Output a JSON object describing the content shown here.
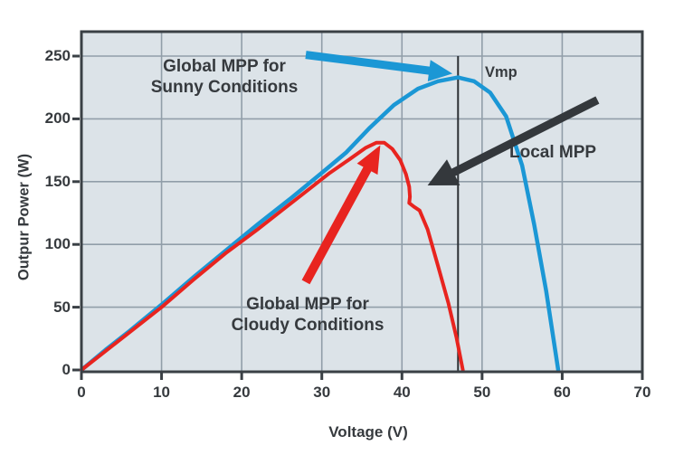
{
  "labels": {
    "sunny_line1": "Global MPP for",
    "sunny_line2": "Sunny Conditions",
    "cloudy_line1": "Global MPP for",
    "cloudy_line2": "Cloudy Conditions",
    "local_mpp": "Local MPP",
    "vmp": "Vmp"
  },
  "colors": {
    "plot_bg": "#dce3e8",
    "grid": "#919ea9",
    "frame": "#3a4045",
    "sunny": "#1b97d5",
    "cloudy": "#e8241f",
    "arrow_black": "#34383c",
    "vmp_line": "#2b2f33",
    "text": "#363a3e"
  },
  "chart_data": {
    "type": "line",
    "title": "",
    "xlabel": "Voltage (V)",
    "ylabel": "Outpur Power (W)",
    "xlim": [
      0,
      70
    ],
    "ylim": [
      0,
      250
    ],
    "x_ticks": [
      0,
      10,
      20,
      30,
      40,
      50,
      60,
      70
    ],
    "y_ticks": [
      0,
      50,
      100,
      150,
      200,
      250
    ],
    "grid": true,
    "legend_position": "none",
    "vmp_line_v": 47,
    "series": [
      {
        "name": "P-V curve sunny conditions",
        "color": "#1b97d5",
        "width": 4.5,
        "global_mpp": [
          47,
          233
        ],
        "points": [
          [
            0,
            0
          ],
          [
            3,
            16
          ],
          [
            6,
            31
          ],
          [
            10,
            52
          ],
          [
            14,
            74
          ],
          [
            18,
            95
          ],
          [
            22,
            116
          ],
          [
            26,
            136
          ],
          [
            30,
            157
          ],
          [
            33,
            173
          ],
          [
            36,
            193
          ],
          [
            39,
            211
          ],
          [
            42,
            224
          ],
          [
            44.5,
            230
          ],
          [
            47,
            233
          ],
          [
            49,
            230
          ],
          [
            51,
            221
          ],
          [
            53,
            202
          ],
          [
            55,
            163
          ],
          [
            56.5,
            116
          ],
          [
            58,
            63
          ],
          [
            59.5,
            0
          ]
        ]
      },
      {
        "name": "P-V curve cloudy conditions",
        "color": "#e8241f",
        "width": 4,
        "global_mpp": [
          37,
          182
        ],
        "local_mpp": [
          42,
          130
        ],
        "points": [
          [
            0,
            0
          ],
          [
            3,
            15
          ],
          [
            6,
            30
          ],
          [
            10,
            50
          ],
          [
            14,
            72
          ],
          [
            18,
            93
          ],
          [
            22,
            112
          ],
          [
            25,
            127
          ],
          [
            28,
            142
          ],
          [
            31,
            157
          ],
          [
            33.5,
            168
          ],
          [
            35.5,
            177
          ],
          [
            36.8,
            181
          ],
          [
            37.8,
            181
          ],
          [
            38.8,
            176
          ],
          [
            39.8,
            167
          ],
          [
            40.5,
            156
          ],
          [
            40.9,
            146
          ],
          [
            41.0,
            138
          ],
          [
            40.9,
            133
          ],
          [
            41.5,
            130
          ],
          [
            42.2,
            127
          ],
          [
            43.2,
            112
          ],
          [
            44.5,
            83
          ],
          [
            45.8,
            53
          ],
          [
            46.8,
            26
          ],
          [
            47.6,
            0
          ]
        ]
      }
    ],
    "arrows": [
      {
        "name": "sunny-mpp-arrow",
        "color": "#1b97d5",
        "from": [
          28,
          251
        ],
        "to": [
          46.3,
          236
        ],
        "shaft": 9,
        "head": [
          26,
          12
        ]
      },
      {
        "name": "cloudy-mpp-arrow",
        "color": "#e8241f",
        "from": [
          28,
          70
        ],
        "to": [
          37.3,
          179
        ],
        "shaft": 10,
        "head": [
          30,
          13
        ]
      },
      {
        "name": "local-mpp-arrow",
        "color": "#34383c",
        "from": [
          64.4,
          215
        ],
        "to": [
          43.2,
          147
        ],
        "shaft": 9,
        "head": [
          32,
          16
        ]
      }
    ]
  }
}
